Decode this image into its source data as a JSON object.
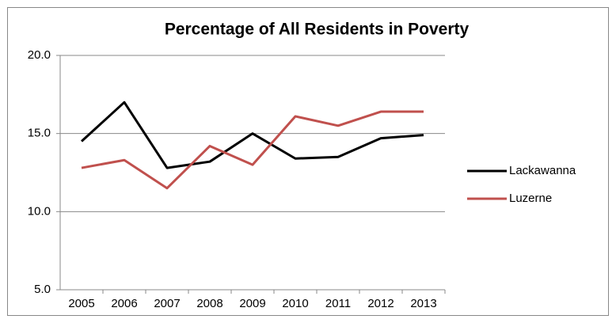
{
  "chart_data": {
    "type": "line",
    "title": "Percentage of All Residents in Poverty",
    "categories": [
      "2005",
      "2006",
      "2007",
      "2008",
      "2009",
      "2010",
      "2011",
      "2012",
      "2013"
    ],
    "series": [
      {
        "name": "Lackawanna",
        "color": "#000000",
        "values": [
          14.5,
          17.0,
          12.8,
          13.2,
          15.0,
          13.4,
          13.5,
          14.7,
          14.9
        ]
      },
      {
        "name": "Luzerne",
        "color": "#c0504d",
        "values": [
          12.8,
          13.3,
          11.5,
          14.2,
          13.0,
          16.1,
          15.5,
          16.4,
          16.4
        ]
      }
    ],
    "ylim": [
      5,
      20
    ],
    "yticks": [
      {
        "value": 5,
        "label": "5.0"
      },
      {
        "value": 10,
        "label": "10.0"
      },
      {
        "value": 15,
        "label": "15.0"
      },
      {
        "value": 20,
        "label": "20.0"
      }
    ],
    "grid": true,
    "legend": "right"
  }
}
